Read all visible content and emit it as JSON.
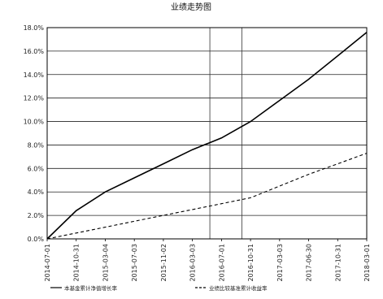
{
  "chart_data": {
    "type": "line",
    "title": "业绩走势图",
    "ylim": [
      0,
      18
    ],
    "yticks": [
      0,
      2,
      4,
      6,
      8,
      10,
      12,
      14,
      16,
      18
    ],
    "ytick_labels": [
      "0.0%",
      "2.0%",
      "4.0%",
      "6.0%",
      "8.0%",
      "10.0%",
      "12.0%",
      "14.0%",
      "16.0%",
      "18.0%"
    ],
    "categories": [
      "2014-07-01",
      "2014-10-31",
      "2015-03-04",
      "2015-07-03",
      "2015-11-02",
      "2016-03-03",
      "2016-07-01",
      "2016-10-31",
      "2017-03-03",
      "2017-06-30",
      "2017-10-31",
      "2018-03-01"
    ],
    "grid": true,
    "vertical_marks": [
      5.6,
      6.7
    ],
    "legend_placement": "bottom",
    "series": [
      {
        "name": "本基金累计净值增长率",
        "style": "solid",
        "color": "#000000",
        "values": [
          0,
          2.4,
          4.0,
          5.2,
          6.4,
          7.6,
          8.6,
          10.0,
          11.8,
          13.6,
          15.6,
          17.6
        ]
      },
      {
        "name": "业绩比较基准累计收益率",
        "style": "dashed",
        "color": "#000000",
        "values": [
          0,
          0.5,
          1.0,
          1.5,
          2.0,
          2.5,
          3.0,
          3.5,
          4.5,
          5.5,
          6.4,
          7.3
        ]
      }
    ]
  }
}
